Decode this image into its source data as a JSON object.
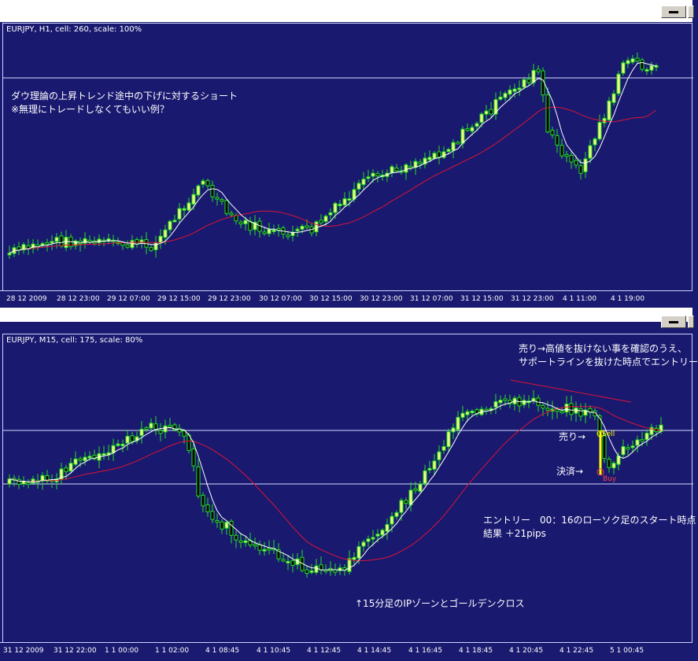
{
  "top_panel": {
    "header": "EURJPY, H1, cell: 260, scale: 100%",
    "note_lines": [
      "ダウ理論の上昇トレンド途中の下げに対するショート",
      "※無理にトレードしなくてもいい例？"
    ],
    "xticks": [
      "28 12 2009",
      "28 12 23:00",
      "29 12 07:00",
      "29 12 15:00",
      "29 12 23:00",
      "30 12 07:00",
      "30 12 15:00",
      "30 12 23:00",
      "31 12 07:00",
      "31 12 15:00",
      "31 12 23:00",
      "4 1 11:00",
      "4 1 19:00"
    ]
  },
  "bottom_panel": {
    "header": "EURJPY, M15, cell: 175, scale: 80%",
    "note_top_lines": [
      "売り→高値を抜けない事を確認のうえ、",
      "サポートラインを抜けた時点でエントリー"
    ],
    "sell_arrow_label": "売り→",
    "settle_arrow_label": "決済→",
    "sell_marker": "Sell",
    "buy_marker": "Buy",
    "entry_lines": [
      "エントリー　00：16のローソク足のスタート時点",
      "結果 ＋21pips"
    ],
    "bottom_note": "↑15分足のIPゾーンとゴールデンクロス",
    "xticks": [
      "31 12 2009",
      "31 12 22:00",
      "1 1 00:00",
      "1 1 02:00",
      "4 1 08:45",
      "4 1 10:45",
      "4 1 12:45",
      "4 1 14:45",
      "4 1 16:45",
      "4 1 18:45",
      "4 1 20:45",
      "4 1 22:45",
      "5 1 00:45"
    ]
  },
  "colors": {
    "background": "#191970",
    "bull_candle": "#f0ff80",
    "bear_candle": "#000000",
    "wick": "#22e01e",
    "fast_ma": "#ffffff",
    "slow_ma": "#dc1432",
    "hline": "#d8dcff",
    "sell_line": "#ffff00",
    "trendline": "#dc1432"
  },
  "chart_data": [
    {
      "type": "candlestick",
      "symbol": "EURJPY",
      "timeframe": "H1",
      "x_tick_labels": [
        "28 12 2009",
        "28 12 23:00",
        "29 12 07:00",
        "29 12 15:00",
        "29 12 23:00",
        "30 12 07:00",
        "30 12 15:00",
        "30 12 23:00",
        "31 12 07:00",
        "31 12 15:00",
        "31 12 23:00",
        "4 1 11:00",
        "4 1 19:00"
      ],
      "series": [
        {
          "name": "",
          "values": [
            [
              94,
              94,
              88,
              96,
              82
            ],
            [
              90,
              96,
              80,
              76,
              99
            ],
            [
              88,
              90,
              90,
              80,
              97
            ],
            [
              90,
              86,
              92,
              76,
              92
            ],
            [
              90,
              84,
              82,
              92,
              86
            ],
            [
              86,
              96,
              76,
              70,
              98
            ],
            [
              92,
              96,
              84,
              91,
              102
            ],
            [
              88,
              92,
              93,
              80,
              86
            ],
            [
              102,
              102,
              100,
              98,
              101
            ],
            [
              96,
              96,
              98,
              92,
              96
            ],
            [
              96,
              100,
              102,
              96,
              102
            ],
            [
              102,
              96,
              100,
              90,
              98
            ],
            [
              98,
              98,
              98,
              96,
              86
            ],
            [
              102,
              98,
              102,
              97,
              96
            ],
            [
              112,
              98,
              116,
              98,
              102
            ],
            [
              120,
              126,
              118,
              124,
              112
            ],
            [
              128,
              130,
              140,
              128,
              142
            ],
            [
              138,
              146,
              140,
              138,
              128
            ],
            [
              128,
              112,
              122,
              120,
              112
            ],
            [
              112,
              112,
              110,
              108,
              108
            ],
            [
              110,
              110,
              98,
              106,
              98
            ],
            [
              102,
              106,
              104,
              98,
              98
            ],
            [
              114,
              120,
              118,
              110,
              110
            ],
            [
              118,
              116,
              124,
              116,
              122
            ],
            [
              130,
              140,
              138,
              130,
              132
            ],
            [
              144,
              152,
              152,
              146,
              142
            ],
            [
              150,
              154,
              168,
              170,
              168
            ],
            [
              172,
              176,
              184,
              180,
              188
            ],
            [
              192,
              196,
              200,
              206,
              212
            ],
            [
              212,
              214,
              208,
              208,
              212
            ],
            [
              182,
              182,
              180,
              196,
              176
            ],
            [
              138,
              128,
              138,
              134,
              144
            ],
            [
              150,
              156,
              168,
              170,
              188
            ],
            [
              202,
              206,
              212,
              218,
              224
            ],
            [
              230,
              230,
              236,
              240,
              238
            ]
          ]
        }
      ],
      "fast_ma": "white",
      "slow_ma": "red",
      "horizontal_lines": 1
    },
    {
      "type": "candlestick",
      "symbol": "EURJPY",
      "timeframe": "M15",
      "x_tick_labels": [
        "31 12 2009",
        "31 12 22:00",
        "1 1 00:00",
        "1 1 02:00",
        "4 1 08:45",
        "4 1 10:45",
        "4 1 12:45",
        "4 1 14:45",
        "4 1 16:45",
        "4 1 18:45",
        "4 1 20:45",
        "4 1 22:45",
        "5 1 00:45"
      ],
      "horizontal_lines": 2,
      "trendline": "resistance",
      "annotations": [
        "Sell",
        "Buy"
      ]
    }
  ]
}
